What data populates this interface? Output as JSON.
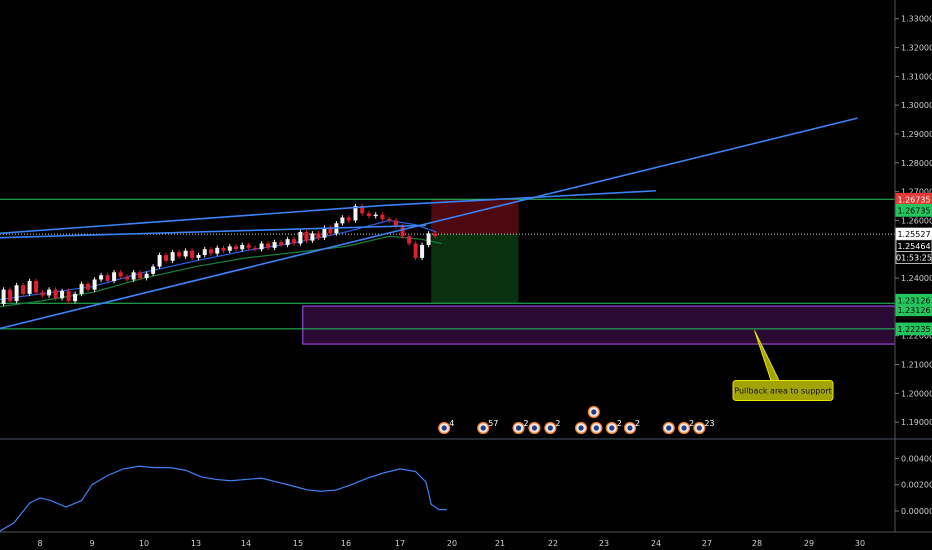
{
  "chart_data": [
    {
      "type": "candlestick",
      "x_ticks": [
        "8",
        "9",
        "10",
        "13",
        "14",
        "15",
        "16",
        "17",
        "20",
        "21",
        "22",
        "23",
        "24",
        "27",
        "28",
        "29",
        "30"
      ],
      "y_ticks": [
        "1.33000",
        "1.32000",
        "1.31000",
        "1.30000",
        "1.29000",
        "1.28000",
        "1.27000",
        "1.26000",
        "1.25000",
        "1.24000",
        "1.23000",
        "1.22000",
        "1.21000",
        "1.20000",
        "1.19000"
      ],
      "ylim": [
        1.1845,
        1.3365
      ],
      "grid": false,
      "price_labels": [
        {
          "text": "1.26735",
          "price": 1.26735,
          "color": "#e53935"
        },
        {
          "text": "1.26735",
          "price": 1.2635,
          "color": "#22c55e"
        },
        {
          "text": "1.25527",
          "price": 1.25527,
          "color": "#ffffff"
        },
        {
          "text": "1.25464",
          "price": 1.2512,
          "color": "#000000"
        },
        {
          "text": "01:53:25",
          "price": 1.2471,
          "color": "#000000"
        },
        {
          "text": "1.23126",
          "price": 1.2323,
          "color": "#22c55e"
        },
        {
          "text": "1.23126",
          "price": 1.229,
          "color": "#22c55e"
        },
        {
          "text": "1.22235",
          "price": 1.22235,
          "color": "#22c55e"
        }
      ],
      "horizontal_levels": [
        1.26735,
        1.23126,
        1.22235
      ],
      "dotted_level": 1.25527,
      "support_zone": {
        "from_x": 13.1,
        "to_x": 32,
        "price_high": 1.2303,
        "price_low": 1.2171
      },
      "risk_box": {
        "from_x": 15.6,
        "to_x": 17.35,
        "entry": 1.25527,
        "stop": 1.26735,
        "target": 1.23126
      },
      "trend_lines": [
        {
          "points": [
            [
              7.2,
              1.2555
            ],
            [
              14.7,
              1.2652
            ],
            [
              20.0,
              1.2703
            ]
          ]
        },
        {
          "points": [
            [
              7.2,
              1.2224
            ],
            [
              23.95,
              1.2955
            ]
          ]
        },
        {
          "points": [
            [
              7.2,
              1.254
            ],
            [
              15.5,
              1.2583
            ]
          ]
        }
      ],
      "candles": [
        [
          1.231,
          1.236
        ],
        [
          1.236,
          1.232
        ],
        [
          1.232,
          1.2375
        ],
        [
          1.2375,
          1.2345
        ],
        [
          1.2345,
          1.239
        ],
        [
          1.239,
          1.235
        ],
        [
          1.235,
          1.234
        ],
        [
          1.234,
          1.236
        ],
        [
          1.236,
          1.233
        ],
        [
          1.233,
          1.2355
        ],
        [
          1.2355,
          1.232
        ],
        [
          1.232,
          1.2345
        ],
        [
          1.2345,
          1.238
        ],
        [
          1.238,
          1.236
        ],
        [
          1.236,
          1.2395
        ],
        [
          1.2395,
          1.241
        ],
        [
          1.241,
          1.239
        ],
        [
          1.239,
          1.242
        ],
        [
          1.242,
          1.2405
        ],
        [
          1.2405,
          1.2395
        ],
        [
          1.2395,
          1.242
        ],
        [
          1.242,
          1.24
        ],
        [
          1.24,
          1.2415
        ],
        [
          1.2415,
          1.244
        ],
        [
          1.244,
          1.248
        ],
        [
          1.248,
          1.246
        ],
        [
          1.246,
          1.249
        ],
        [
          1.249,
          1.2475
        ],
        [
          1.2475,
          1.2495
        ],
        [
          1.2495,
          1.247
        ],
        [
          1.247,
          1.248
        ],
        [
          1.248,
          1.25
        ],
        [
          1.25,
          1.2485
        ],
        [
          1.2485,
          1.2505
        ],
        [
          1.2505,
          1.2495
        ],
        [
          1.2495,
          1.251
        ],
        [
          1.251,
          1.25
        ],
        [
          1.25,
          1.2515
        ],
        [
          1.2515,
          1.2505
        ],
        [
          1.2505,
          1.25
        ],
        [
          1.25,
          1.252
        ],
        [
          1.252,
          1.2505
        ],
        [
          1.2505,
          1.2525
        ],
        [
          1.2525,
          1.2515
        ],
        [
          1.2515,
          1.2535
        ],
        [
          1.2535,
          1.252
        ],
        [
          1.252,
          1.256
        ],
        [
          1.256,
          1.253
        ],
        [
          1.253,
          1.2555
        ],
        [
          1.2555,
          1.254
        ],
        [
          1.254,
          1.2575
        ],
        [
          1.2575,
          1.2555
        ],
        [
          1.2555,
          1.259
        ],
        [
          1.259,
          1.261
        ],
        [
          1.261,
          1.26
        ],
        [
          1.26,
          1.265
        ],
        [
          1.265,
          1.2625
        ],
        [
          1.2625,
          1.2615
        ],
        [
          1.2615,
          1.262
        ],
        [
          1.262,
          1.2605
        ],
        [
          1.2605,
          1.26
        ],
        [
          1.26,
          1.258
        ],
        [
          1.258,
          1.2545
        ],
        [
          1.2545,
          1.252
        ],
        [
          1.252,
          1.247
        ],
        [
          1.247,
          1.2515
        ],
        [
          1.2515,
          1.2555
        ],
        [
          1.2555,
          1.2546
        ]
      ],
      "candle_x_start": 7.3,
      "candle_x_step": 0.125,
      "moving_averages": [
        {
          "color": "#2563eb",
          "values": [
            [
              7.2,
              1.2325
            ],
            [
              8.0,
              1.2345
            ],
            [
              9.0,
              1.237
            ],
            [
              10.0,
              1.242
            ],
            [
              11.0,
              1.246
            ],
            [
              12.0,
              1.2495
            ],
            [
              13.0,
              1.2525
            ],
            [
              14.0,
              1.256
            ],
            [
              14.8,
              1.26
            ],
            [
              15.3,
              1.2585
            ],
            [
              15.7,
              1.256
            ]
          ]
        },
        {
          "color": "#15803d",
          "values": [
            [
              7.2,
              1.23
            ],
            [
              8.0,
              1.232
            ],
            [
              9.0,
              1.235
            ],
            [
              10.0,
              1.24
            ],
            [
              11.0,
              1.244
            ],
            [
              12.0,
              1.247
            ],
            [
              13.0,
              1.249
            ],
            [
              14.0,
              1.251
            ],
            [
              14.8,
              1.2545
            ],
            [
              15.4,
              1.2535
            ],
            [
              15.8,
              1.252
            ]
          ]
        }
      ],
      "annotation": {
        "text": "Pullback area to support",
        "x": 22.5,
        "price": 1.201,
        "pointer_x": 21.95,
        "pointer_price": 1.2218
      },
      "event_badges": [
        {
          "x": 15.85,
          "text": "4"
        },
        {
          "x": 16.65,
          "text": "57"
        },
        {
          "x": 17.35,
          "text": "2"
        },
        {
          "x": 17.65,
          "text": ""
        },
        {
          "x": 17.95,
          "text": "2"
        },
        {
          "x": 18.55,
          "text": ""
        },
        {
          "x": 18.85,
          "text": ""
        },
        {
          "x": 19.15,
          "text": "2"
        },
        {
          "x": 19.5,
          "text": "2"
        },
        {
          "x": 20.25,
          "text": ""
        },
        {
          "x": 20.55,
          "text": "2"
        },
        {
          "x": 20.85,
          "text": "23"
        }
      ],
      "event_badge_extra": {
        "x": 18.8,
        "text": ""
      }
    },
    {
      "type": "line",
      "y_ticks": [
        "0.00400",
        "0.00200",
        "0.00000"
      ],
      "ylim": [
        -0.0016,
        0.0054
      ],
      "grid": false,
      "values": [
        [
          7.2,
          -0.0016
        ],
        [
          7.5,
          -0.0009
        ],
        [
          7.8,
          0.0006
        ],
        [
          8.0,
          0.001
        ],
        [
          8.2,
          0.0008
        ],
        [
          8.5,
          0.0003
        ],
        [
          8.8,
          0.0008
        ],
        [
          9.0,
          0.002
        ],
        [
          9.3,
          0.0027
        ],
        [
          9.6,
          0.0032
        ],
        [
          9.9,
          0.0034
        ],
        [
          10.2,
          0.0033
        ],
        [
          10.5,
          0.0033
        ],
        [
          10.8,
          0.0031
        ],
        [
          11.1,
          0.0026
        ],
        [
          11.4,
          0.0024
        ],
        [
          11.7,
          0.0023
        ],
        [
          12.0,
          0.0024
        ],
        [
          12.3,
          0.0025
        ],
        [
          12.6,
          0.0022
        ],
        [
          12.9,
          0.0019
        ],
        [
          13.2,
          0.0016
        ],
        [
          13.5,
          0.0015
        ],
        [
          13.8,
          0.0016
        ],
        [
          14.1,
          0.002
        ],
        [
          14.4,
          0.0025
        ],
        [
          14.7,
          0.0029
        ],
        [
          15.0,
          0.0032
        ],
        [
          15.3,
          0.003
        ],
        [
          15.5,
          0.0022
        ],
        [
          15.6,
          0.0005
        ],
        [
          15.75,
          0.0001
        ],
        [
          15.9,
          0.0001
        ]
      ]
    }
  ]
}
